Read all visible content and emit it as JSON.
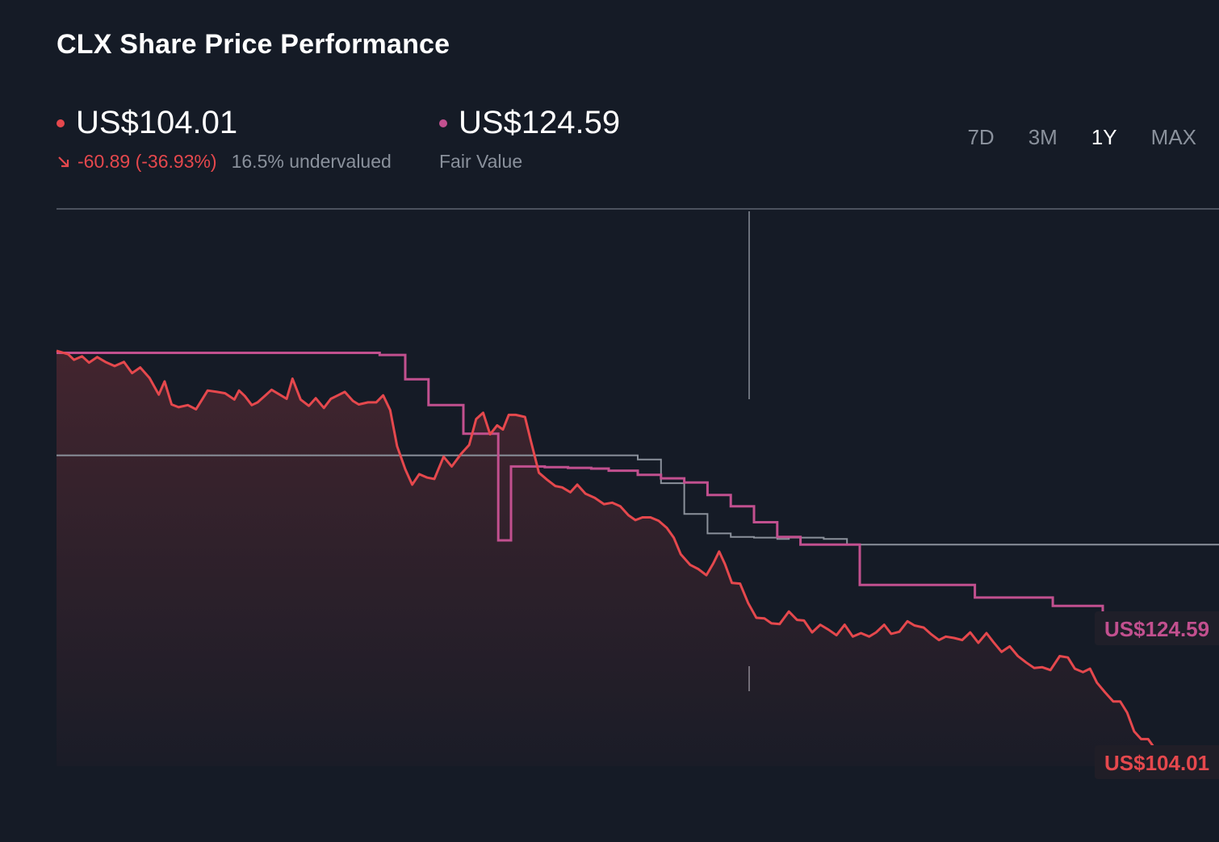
{
  "title": "CLX Share Price Performance",
  "price": {
    "value": "US$104.01",
    "change": "-60.89 (-36.93%)",
    "valuation": "16.5% undervalued",
    "color": "#e5484d"
  },
  "fair_value": {
    "value": "US$124.59",
    "label": "Fair Value",
    "color": "#c2508f"
  },
  "periods": [
    {
      "label": "7D"
    },
    {
      "label": "3M"
    },
    {
      "label": "1Y",
      "active": true
    },
    {
      "label": "MAX"
    }
  ],
  "chart_data": {
    "type": "line",
    "ylim": [
      95,
      185
    ],
    "x_range": [
      0,
      100
    ],
    "gridlines_y": [
      150,
      185
    ],
    "series": [
      {
        "name": "Share price",
        "color": "#e5484d",
        "label": "US$104.01",
        "points": [
          [
            0,
            165
          ],
          [
            1,
            164.5
          ],
          [
            1.5,
            163.7
          ],
          [
            2.2,
            164.2
          ],
          [
            2.8,
            163.3
          ],
          [
            3.5,
            164.1
          ],
          [
            4.2,
            163.4
          ],
          [
            5,
            162.8
          ],
          [
            5.8,
            163.4
          ],
          [
            6.5,
            161.8
          ],
          [
            7.2,
            162.6
          ],
          [
            8,
            161.1
          ],
          [
            8.8,
            158.7
          ],
          [
            9.3,
            160.6
          ],
          [
            9.9,
            157.3
          ],
          [
            10.5,
            156.9
          ],
          [
            11.3,
            157.2
          ],
          [
            12,
            156.6
          ],
          [
            12.6,
            158.2
          ],
          [
            13,
            159.3
          ],
          [
            13.8,
            159.1
          ],
          [
            14.5,
            158.9
          ],
          [
            15.3,
            158
          ],
          [
            15.7,
            159.3
          ],
          [
            16.2,
            158.5
          ],
          [
            16.8,
            157.2
          ],
          [
            17.3,
            157.6
          ],
          [
            17.9,
            158.5
          ],
          [
            18.5,
            159.4
          ],
          [
            19.2,
            158.7
          ],
          [
            19.8,
            158.1
          ],
          [
            20.3,
            161
          ],
          [
            21,
            158
          ],
          [
            21.7,
            157.1
          ],
          [
            22.3,
            158.2
          ],
          [
            23,
            156.8
          ],
          [
            23.6,
            158.1
          ],
          [
            24.2,
            158.6
          ],
          [
            24.8,
            159.1
          ],
          [
            25.5,
            157.8
          ],
          [
            26,
            157.3
          ],
          [
            26.8,
            157.6
          ],
          [
            27.5,
            157.6
          ],
          [
            28.1,
            158.6
          ],
          [
            28.7,
            156.5
          ],
          [
            29.3,
            151.3
          ],
          [
            30,
            148
          ],
          [
            30.6,
            145.8
          ],
          [
            31.2,
            147.3
          ],
          [
            31.9,
            146.8
          ],
          [
            32.5,
            146.6
          ],
          [
            33.3,
            149.8
          ],
          [
            34,
            148.4
          ],
          [
            34.8,
            150.2
          ],
          [
            35.5,
            151.5
          ],
          [
            36.1,
            155.2
          ],
          [
            36.7,
            156.1
          ],
          [
            37.3,
            153
          ],
          [
            37.9,
            154.3
          ],
          [
            38.4,
            153.7
          ],
          [
            38.9,
            155.8
          ],
          [
            39.5,
            155.8
          ],
          [
            40.3,
            155.5
          ],
          [
            40.8,
            152.1
          ],
          [
            41.5,
            147.5
          ],
          [
            42.2,
            146.5
          ],
          [
            42.9,
            145.6
          ],
          [
            43.5,
            145.4
          ],
          [
            44.2,
            144.7
          ],
          [
            44.8,
            145.8
          ],
          [
            45.5,
            144.5
          ],
          [
            46.3,
            143.9
          ],
          [
            47.1,
            143
          ],
          [
            47.8,
            143.2
          ],
          [
            48.5,
            142.7
          ],
          [
            49.2,
            141.4
          ],
          [
            49.8,
            140.7
          ],
          [
            50.4,
            141.1
          ],
          [
            51.1,
            141.1
          ],
          [
            51.8,
            140.6
          ],
          [
            52.5,
            139.6
          ],
          [
            53.1,
            138.2
          ],
          [
            53.7,
            135.8
          ],
          [
            54.5,
            134.3
          ],
          [
            55.2,
            133.7
          ],
          [
            55.9,
            132.8
          ],
          [
            56.5,
            134.5
          ],
          [
            57,
            136.2
          ],
          [
            57.5,
            134.4
          ],
          [
            58.1,
            131.7
          ],
          [
            58.8,
            131.6
          ],
          [
            59.5,
            128.8
          ],
          [
            60.2,
            126.7
          ],
          [
            60.9,
            126.6
          ],
          [
            61.5,
            125.9
          ],
          [
            62.2,
            125.8
          ],
          [
            63,
            127.6
          ],
          [
            63.7,
            126.4
          ],
          [
            64.3,
            126.3
          ],
          [
            65,
            124.6
          ],
          [
            65.7,
            125.7
          ],
          [
            66.4,
            125
          ],
          [
            67.1,
            124.2
          ],
          [
            67.8,
            125.7
          ],
          [
            68.5,
            124
          ],
          [
            69.2,
            124.5
          ],
          [
            69.9,
            124
          ],
          [
            70.5,
            124.6
          ],
          [
            71.2,
            125.7
          ],
          [
            71.8,
            124.4
          ],
          [
            72.5,
            124.7
          ],
          [
            73.2,
            126.2
          ],
          [
            73.8,
            125.6
          ],
          [
            74.6,
            125.3
          ],
          [
            75.2,
            124.4
          ],
          [
            75.9,
            123.5
          ],
          [
            76.5,
            124
          ],
          [
            77.2,
            123.8
          ],
          [
            77.9,
            123.5
          ],
          [
            78.6,
            124.6
          ],
          [
            79.3,
            123.1
          ],
          [
            80,
            124.5
          ],
          [
            80.6,
            123.2
          ],
          [
            81.3,
            121.8
          ],
          [
            82,
            122.6
          ],
          [
            82.7,
            121.2
          ],
          [
            83.4,
            120.3
          ],
          [
            84.1,
            119.5
          ],
          [
            84.8,
            119.6
          ],
          [
            85.5,
            119.2
          ],
          [
            86.3,
            121.2
          ],
          [
            87,
            121
          ],
          [
            87.6,
            119.4
          ],
          [
            88.3,
            118.9
          ],
          [
            88.9,
            119.4
          ],
          [
            89.5,
            117.4
          ],
          [
            90.2,
            116
          ],
          [
            90.9,
            114.7
          ],
          [
            91.5,
            114.7
          ],
          [
            92.1,
            113.1
          ],
          [
            92.7,
            110.4
          ],
          [
            93.3,
            109.3
          ],
          [
            93.9,
            109.3
          ],
          [
            94.5,
            107.9
          ],
          [
            95,
            106
          ],
          [
            95.6,
            106.8
          ],
          [
            96.2,
            108.2
          ],
          [
            96.8,
            107.7
          ],
          [
            97.5,
            107.3
          ],
          [
            98,
            106.5
          ],
          [
            98.6,
            106.3
          ],
          [
            99.2,
            105.2
          ],
          [
            100,
            104.01
          ]
        ]
      },
      {
        "name": "Fair Value",
        "color": "#c2508f",
        "label": "US$124.59",
        "points": [
          [
            0,
            164.7
          ],
          [
            27.8,
            164.7
          ],
          [
            27.8,
            164.4
          ],
          [
            30,
            164.4
          ],
          [
            30,
            160.9
          ],
          [
            32,
            160.9
          ],
          [
            32,
            157.2
          ],
          [
            35,
            157.2
          ],
          [
            35,
            153.1
          ],
          [
            38,
            153.1
          ],
          [
            38,
            137.8
          ],
          [
            39.1,
            137.8
          ],
          [
            39.1,
            148.4
          ],
          [
            42,
            148.4
          ],
          [
            42,
            148.3
          ],
          [
            44,
            148.3
          ],
          [
            44,
            148.2
          ],
          [
            46,
            148.2
          ],
          [
            46,
            148.1
          ],
          [
            47.5,
            148.1
          ],
          [
            47.5,
            147.8
          ],
          [
            50,
            147.8
          ],
          [
            50,
            147.2
          ],
          [
            52,
            147.2
          ],
          [
            52,
            146.7
          ],
          [
            54,
            146.7
          ],
          [
            54,
            146.1
          ],
          [
            56,
            146.1
          ],
          [
            56,
            144.3
          ],
          [
            58,
            144.3
          ],
          [
            58,
            142.7
          ],
          [
            60,
            142.7
          ],
          [
            60,
            140.4
          ],
          [
            62,
            140.4
          ],
          [
            62,
            138.3
          ],
          [
            64,
            138.3
          ],
          [
            64,
            137.2
          ],
          [
            69.1,
            137.2
          ],
          [
            69.1,
            131.4
          ],
          [
            73,
            131.4
          ],
          [
            73,
            131.4
          ],
          [
            79,
            131.4
          ],
          [
            79,
            129.6
          ],
          [
            85.7,
            129.6
          ],
          [
            85.7,
            128.4
          ],
          [
            90,
            128.4
          ],
          [
            90,
            124.59
          ]
        ]
      },
      {
        "name": "Reference",
        "color": "#8b919b",
        "points": [
          [
            0,
            150
          ],
          [
            50,
            150
          ],
          [
            50,
            149.4
          ],
          [
            52,
            149.4
          ],
          [
            52,
            146
          ],
          [
            54,
            146
          ],
          [
            54,
            141.6
          ],
          [
            56,
            141.6
          ],
          [
            56,
            138.8
          ],
          [
            58,
            138.8
          ],
          [
            58,
            138.3
          ],
          [
            60,
            138.3
          ],
          [
            60,
            138.2
          ],
          [
            62,
            138.2
          ],
          [
            62,
            138
          ],
          [
            63,
            138
          ],
          [
            63,
            138.2
          ],
          [
            66,
            138.2
          ],
          [
            66,
            138
          ],
          [
            68,
            138
          ],
          [
            68,
            137.2
          ],
          [
            70,
            137.2
          ],
          [
            70,
            137.2
          ],
          [
            100,
            137.2
          ]
        ]
      }
    ]
  }
}
